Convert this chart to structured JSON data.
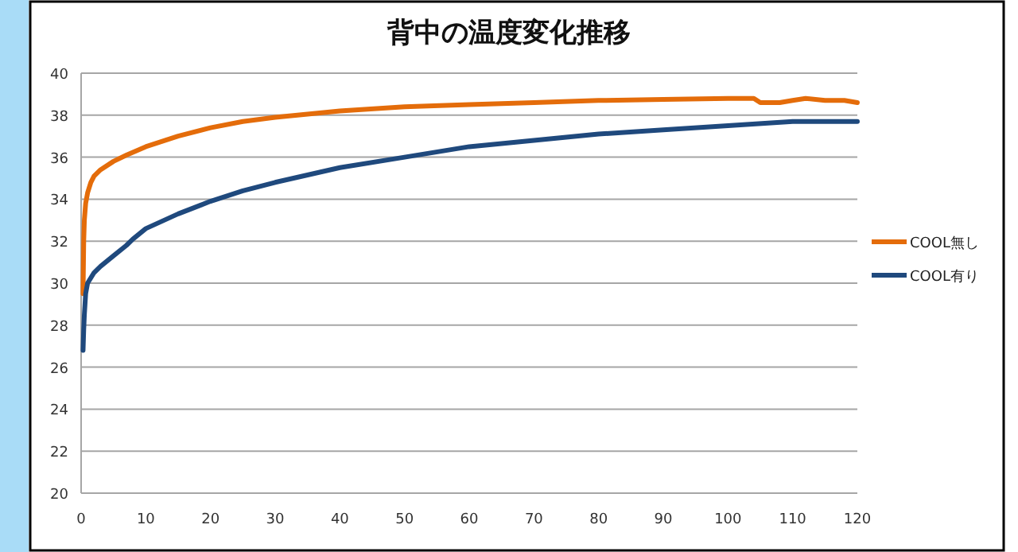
{
  "chart_data": {
    "type": "line",
    "title": "背中の温度変化推移",
    "xlim": [
      0,
      120
    ],
    "xticks": [
      0,
      10,
      20,
      30,
      40,
      50,
      60,
      70,
      80,
      90,
      100,
      110,
      120
    ],
    "ylim": [
      20,
      40
    ],
    "yticks": [
      20,
      22,
      24,
      26,
      28,
      30,
      32,
      34,
      36,
      38,
      40
    ],
    "grid": "y",
    "legend": "right",
    "marker": "none",
    "line_style": "solid",
    "series": [
      {
        "name": "COOL無し",
        "color": "#e46c0a",
        "x": [
          0.3,
          0.4,
          0.5,
          0.7,
          1,
          1.5,
          2,
          3,
          5,
          7,
          10,
          15,
          20,
          25,
          30,
          40,
          50,
          60,
          70,
          80,
          90,
          100,
          104,
          105,
          108,
          110,
          112,
          115,
          118,
          120
        ],
        "values": [
          29.5,
          32,
          33,
          33.8,
          34.3,
          34.8,
          35.1,
          35.4,
          35.8,
          36.1,
          36.5,
          37,
          37.4,
          37.7,
          37.9,
          38.2,
          38.4,
          38.5,
          38.6,
          38.7,
          38.75,
          38.8,
          38.8,
          38.6,
          38.6,
          38.7,
          38.8,
          38.7,
          38.7,
          38.6
        ]
      },
      {
        "name": "COOL有り",
        "color": "#1f497d",
        "x": [
          0.3,
          0.4,
          0.5,
          0.7,
          1,
          2,
          3,
          5,
          7,
          8,
          10,
          15,
          20,
          25,
          30,
          40,
          50,
          60,
          70,
          80,
          90,
          100,
          110,
          120
        ],
        "values": [
          26.8,
          27.8,
          28.5,
          29.5,
          30,
          30.5,
          30.8,
          31.3,
          31.8,
          32.1,
          32.6,
          33.3,
          33.9,
          34.4,
          34.8,
          35.5,
          36,
          36.5,
          36.8,
          37.1,
          37.3,
          37.5,
          37.7,
          37.7
        ]
      }
    ]
  }
}
